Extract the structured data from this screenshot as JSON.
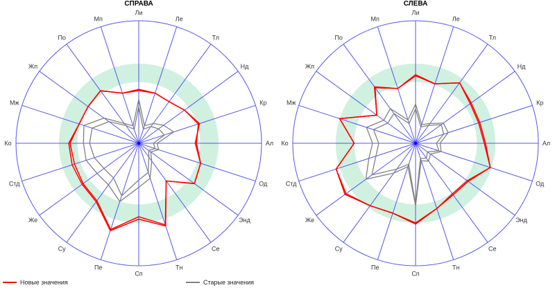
{
  "chart_data": [
    {
      "type": "radar",
      "title": "СПРАВА",
      "axes": [
        "Ли",
        "Ле",
        "Тл",
        "Нд",
        "Кр",
        "Ал",
        "Од",
        "Энд",
        "Се",
        "Тн",
        "Сп",
        "Пе",
        "Су",
        "Же",
        "Стд",
        "Ко",
        "Мж",
        "Жп",
        "По",
        "Мп"
      ],
      "rlim": [
        0,
        1
      ],
      "target_band": [
        0.5,
        0.65
      ],
      "series": [
        {
          "group": "new",
          "values": [
            0.44,
            0.43,
            0.42,
            0.46,
            0.52,
            0.46,
            0.53,
            0.56,
            0.38,
            0.71,
            0.62,
            0.75,
            0.59,
            0.57,
            0.57,
            0.57,
            0.51,
            0.51,
            0.53,
            0.43
          ]
        },
        {
          "group": "new",
          "values": [
            0.43,
            0.43,
            0.42,
            0.46,
            0.51,
            0.47,
            0.53,
            0.56,
            0.38,
            0.7,
            0.6,
            0.74,
            0.58,
            0.56,
            0.55,
            0.56,
            0.51,
            0.51,
            0.53,
            0.43
          ]
        },
        {
          "group": "old",
          "values": [
            0.36,
            0.15,
            0.2,
            0.25,
            0.3,
            0.15,
            0.17,
            0.12,
            0.18,
            0.3,
            0.36,
            0.5,
            0.42,
            0.42,
            0.45,
            0.45,
            0.47,
            0.35,
            0.2,
            0.15
          ]
        },
        {
          "group": "old",
          "values": [
            0.3,
            0.12,
            0.17,
            0.2,
            0.22,
            0.12,
            0.14,
            0.1,
            0.14,
            0.25,
            0.3,
            0.45,
            0.35,
            0.35,
            0.38,
            0.4,
            0.4,
            0.3,
            0.18,
            0.12
          ]
        }
      ]
    },
    {
      "type": "radar",
      "title": "СЛЕВА",
      "axes": [
        "Ли",
        "Ле",
        "Тл",
        "Нд",
        "Кр",
        "Ал",
        "Од",
        "Энд",
        "Се",
        "Тн",
        "Сп",
        "Пе",
        "Су",
        "Же",
        "Стд",
        "Ко",
        "Мж",
        "Жп",
        "По",
        "Мп"
      ],
      "rlim": [
        0,
        1
      ],
      "target_band": [
        0.5,
        0.65
      ],
      "series": [
        {
          "group": "new",
          "values": [
            0.56,
            0.51,
            0.61,
            0.56,
            0.55,
            0.57,
            0.64,
            0.53,
            0.52,
            0.56,
            0.66,
            0.6,
            0.63,
            0.71,
            0.68,
            0.5,
            0.65,
            0.39,
            0.57,
            0.47
          ]
        },
        {
          "group": "new",
          "values": [
            0.55,
            0.51,
            0.61,
            0.55,
            0.54,
            0.56,
            0.64,
            0.52,
            0.51,
            0.56,
            0.65,
            0.6,
            0.63,
            0.7,
            0.68,
            0.5,
            0.65,
            0.39,
            0.56,
            0.47
          ]
        },
        {
          "group": "old",
          "values": [
            0.32,
            0.16,
            0.2,
            0.28,
            0.28,
            0.2,
            0.22,
            0.15,
            0.18,
            0.15,
            0.51,
            0.2,
            0.3,
            0.5,
            0.4,
            0.35,
            0.42,
            0.32,
            0.35,
            0.2
          ]
        },
        {
          "group": "old",
          "values": [
            0.28,
            0.14,
            0.18,
            0.26,
            0.24,
            0.17,
            0.2,
            0.12,
            0.15,
            0.13,
            0.5,
            0.18,
            0.26,
            0.44,
            0.34,
            0.3,
            0.36,
            0.28,
            0.3,
            0.17
          ]
        }
      ]
    }
  ],
  "legend": {
    "new_label": "Новые значения",
    "old_label": "Старые значения"
  },
  "colors": {
    "spokes": "#5555ee",
    "band": "#d0f0e0",
    "new": "#ff0000",
    "old": "#808080"
  }
}
